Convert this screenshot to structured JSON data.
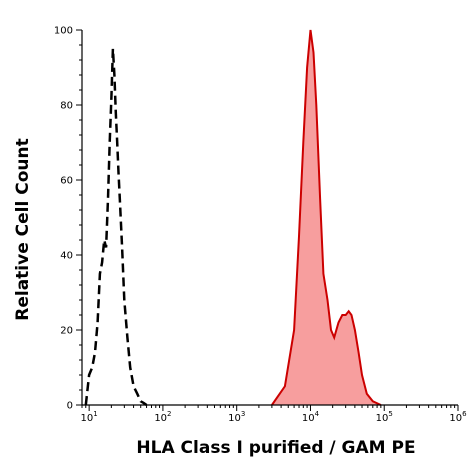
{
  "chart_data": {
    "type": "area",
    "xlabel": "HLA Class I purified / GAM PE",
    "ylabel": "Relative Cell Count",
    "x_scale": "log",
    "xlim": [
      8,
      1000000
    ],
    "ylim": [
      0,
      100
    ],
    "x_ticks": [
      {
        "base": "10",
        "exp": "1"
      },
      {
        "base": "10",
        "exp": "2"
      },
      {
        "base": "10",
        "exp": "3"
      },
      {
        "base": "10",
        "exp": "4"
      },
      {
        "base": "10",
        "exp": "5"
      },
      {
        "base": "10",
        "exp": "6"
      }
    ],
    "y_ticks": [
      "0",
      "20",
      "40",
      "60",
      "80",
      "100"
    ],
    "colors": {
      "stained_fill": "#f79e9e",
      "stained_line": "#cc0000",
      "control_line": "#000000"
    },
    "series": [
      {
        "style": "black dashed outline (isotype control)",
        "x": [
          9,
          10,
          11,
          12,
          13,
          14,
          15,
          16,
          17,
          18,
          19,
          20,
          21,
          22,
          23,
          24,
          25,
          26,
          28,
          30,
          33,
          36,
          40,
          45,
          50,
          55,
          60
        ],
        "y": [
          0,
          8,
          10,
          14,
          22,
          35,
          38,
          44,
          42,
          55,
          70,
          82,
          95,
          88,
          78,
          70,
          62,
          55,
          42,
          28,
          18,
          10,
          5,
          3,
          1,
          0.5,
          0
        ]
      },
      {
        "style": "red filled histogram (HLA Class I stained)",
        "x": [
          3000,
          4500,
          6000,
          7000,
          8000,
          9000,
          10000,
          11000,
          12000,
          13500,
          15000,
          17000,
          19000,
          21000,
          24000,
          27000,
          30000,
          33000,
          36000,
          40000,
          45000,
          50000,
          58000,
          70000,
          90000
        ],
        "y": [
          0,
          5,
          20,
          45,
          70,
          90,
          100,
          94,
          80,
          55,
          35,
          28,
          20,
          18,
          22,
          24,
          24,
          25,
          24,
          20,
          14,
          8,
          3,
          1,
          0
        ]
      }
    ]
  }
}
